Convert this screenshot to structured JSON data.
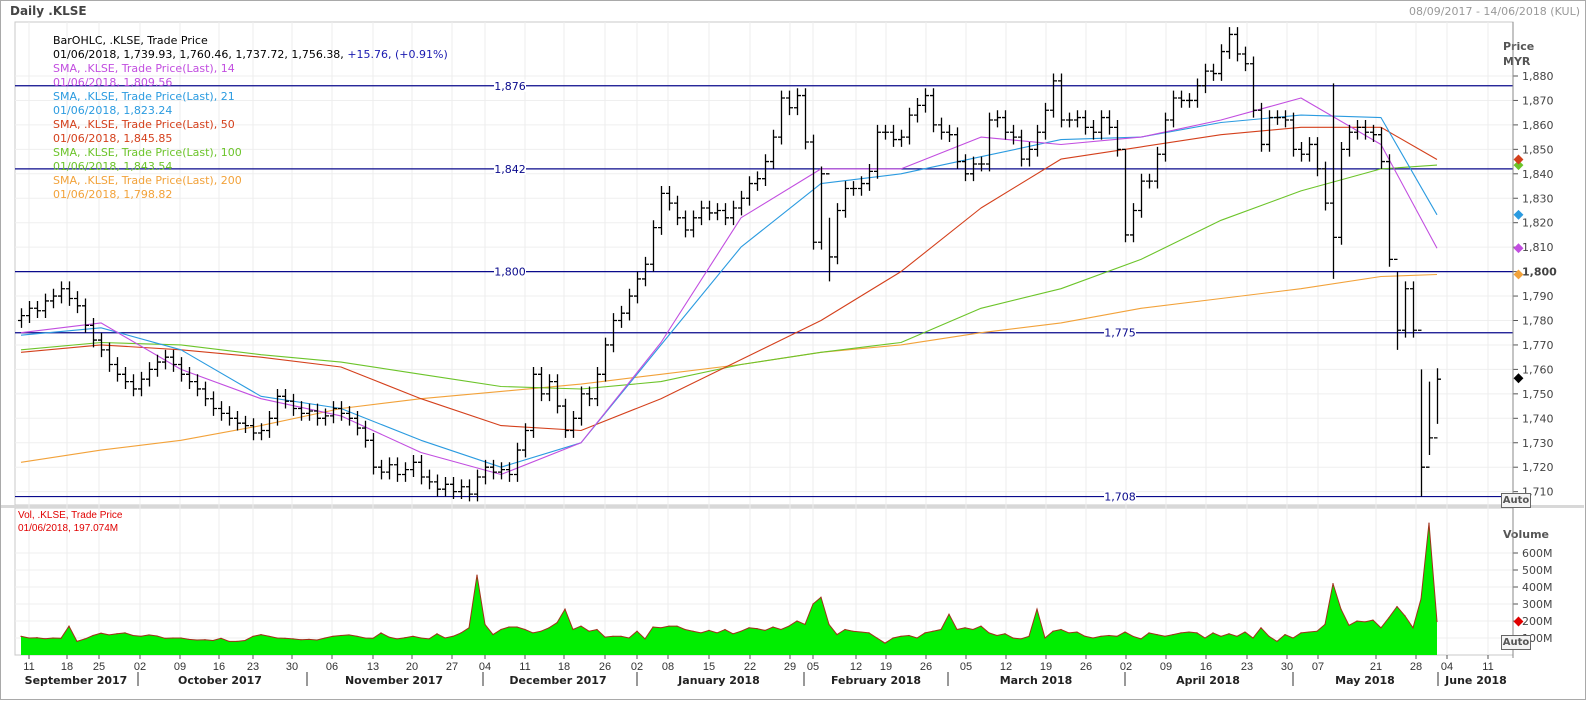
{
  "window": {
    "title": "Daily .KLSE",
    "date_range": "08/09/2017 - 14/06/2018 (KUL)"
  },
  "legend": {
    "ohlc_title": "BarOHLC, .KLSE, Trade Price",
    "ohlc_values": "01/06/2018, 1,739.93, 1,760.46, 1,737.72, 1,756.38,",
    "ohlc_change": "+15.76, (+0.91%)",
    "sma14_title": "SMA, .KLSE, Trade Price(Last),  14",
    "sma14_value": "01/06/2018, 1,809.56",
    "sma21_title": "SMA, .KLSE, Trade Price(Last),  21",
    "sma21_value": "01/06/2018, 1,823.24",
    "sma50_title": "SMA, .KLSE, Trade Price(Last),  50",
    "sma50_value": "01/06/2018, 1,845.85",
    "sma100_title": "SMA, .KLSE, Trade Price(Last),  100",
    "sma100_value": "01/06/2018, 1,843.54",
    "sma200_title": "SMA, .KLSE, Trade Price(Last),  200",
    "sma200_value": "01/06/2018, 1,798.82",
    "vol_title": "Vol, .KLSE, Trade Price",
    "vol_value": "01/06/2018, 197.074M"
  },
  "colors": {
    "sma14": "#c24ee0",
    "sma21": "#2b9be0",
    "sma50": "#d4401c",
    "sma100": "#6cc42a",
    "sma200": "#f2a23a",
    "hline": "#0a0a8c",
    "volume_fill": "#00ee00",
    "volume_line": "#a0301a",
    "bars": "#000000",
    "change": "#1a1ab0"
  },
  "chart_data": [
    {
      "type": "ohlc",
      "yaxis_title": "Price",
      "yaxis_unit": "MYR",
      "ylim": [
        1705,
        1900
      ],
      "yticks": [
        "1,880",
        "1,870",
        "1,860",
        "1,850",
        "1,840",
        "1,830",
        "1,820",
        "1,810",
        "1,800",
        "1,790",
        "1,780",
        "1,770",
        "1,760",
        "1,750",
        "1,740",
        "1,730",
        "1,720",
        "1,710"
      ],
      "ytick_values": [
        1880,
        1870,
        1860,
        1850,
        1840,
        1830,
        1820,
        1810,
        1800,
        1790,
        1780,
        1770,
        1760,
        1750,
        1740,
        1730,
        1720,
        1710
      ],
      "scale_button": "Auto",
      "grid": true,
      "closes": [
        1782,
        1785,
        1784,
        1788,
        1790,
        1793,
        1789,
        1786,
        1778,
        1772,
        1768,
        1762,
        1758,
        1755,
        1752,
        1756,
        1760,
        1763,
        1765,
        1762,
        1758,
        1755,
        1752,
        1748,
        1744,
        1742,
        1740,
        1738,
        1737,
        1734,
        1735,
        1740,
        1749,
        1747,
        1744,
        1742,
        1743,
        1740,
        1741,
        1744,
        1742,
        1740,
        1736,
        1731,
        1720,
        1718,
        1721,
        1717,
        1719,
        1722,
        1716,
        1714,
        1711,
        1713,
        1710,
        1712,
        1709,
        1716,
        1720,
        1718,
        1719,
        1717,
        1727,
        1735,
        1758,
        1750,
        1755,
        1745,
        1735,
        1740,
        1750,
        1748,
        1758,
        1770,
        1780,
        1783,
        1790,
        1797,
        1803,
        1818,
        1832,
        1828,
        1822,
        1817,
        1822,
        1826,
        1824,
        1825,
        1822,
        1826,
        1830,
        1836,
        1838,
        1845,
        1855,
        1871,
        1867,
        1872,
        1853,
        1812,
        1840,
        1806,
        1825,
        1834,
        1834,
        1836,
        1841,
        1857,
        1857,
        1854,
        1855,
        1864,
        1868,
        1872,
        1860,
        1857,
        1856,
        1845,
        1840,
        1844,
        1844,
        1862,
        1863,
        1857,
        1855,
        1846,
        1850,
        1857,
        1866,
        1878,
        1862,
        1862,
        1863,
        1859,
        1857,
        1863,
        1859,
        1850,
        1815,
        1825,
        1837,
        1837,
        1848,
        1862,
        1871,
        1870,
        1870,
        1876,
        1882,
        1881,
        1890,
        1897,
        1889,
        1885,
        1866,
        1852,
        1863,
        1863,
        1862,
        1850,
        1848,
        1852,
        1842,
        1828,
        1814,
        1850,
        1857,
        1859,
        1857,
        1856,
        1845,
        1805,
        1776,
        1793,
        1776,
        1720,
        1732,
        1756
      ],
      "range_overrides": {
        "101": [
          1822,
          1796
        ],
        "138": [
          1850,
          1812
        ],
        "164": [
          1877,
          1797
        ],
        "172": [
          1800,
          1768
        ],
        "175": [
          1760,
          1708
        ],
        "176": [
          1755,
          1725
        ],
        "177": [
          1760.46,
          1737.72
        ]
      },
      "price_lines": [
        {
          "value": 1876,
          "label": "1,876"
        },
        {
          "value": 1842,
          "label": "1,842"
        },
        {
          "value": 1800,
          "label": "1,800"
        },
        {
          "value": 1775,
          "label": "1,775"
        },
        {
          "value": 1708,
          "label": "1,708"
        }
      ],
      "sma": {
        "sma14": [
          1775,
          1779,
          1760,
          1748,
          1741,
          1726,
          1717,
          1730,
          1771,
          1822,
          1842,
          1842,
          1855,
          1852,
          1855,
          1862,
          1871,
          1852,
          1809.56
        ],
        "sma21": [
          1774,
          1777,
          1768,
          1749,
          1744,
          1731,
          1720,
          1730,
          1770,
          1810,
          1836,
          1840,
          1847,
          1854,
          1855,
          1861,
          1864,
          1863,
          1823.24
        ],
        "sma50": [
          1767,
          1770,
          1768,
          1765,
          1761,
          1748,
          1737,
          1735,
          1748,
          1764,
          1780,
          1800,
          1826,
          1846,
          1851,
          1856,
          1859,
          1859,
          1845.85
        ],
        "sma100": [
          1768,
          1771,
          1770,
          1766,
          1763,
          1758,
          1753,
          1752,
          1755,
          1762,
          1767,
          1771,
          1785,
          1793,
          1805,
          1821,
          1833,
          1842,
          1843.54
        ],
        "sma200": [
          1722,
          1727,
          1731,
          1737,
          1744,
          1748,
          1751,
          1754,
          1758,
          1762,
          1767,
          1770,
          1775,
          1779,
          1785,
          1789,
          1793,
          1798,
          1798.82
        ]
      },
      "last_close": 1756.38
    },
    {
      "type": "area",
      "yaxis_title": "Volume",
      "yticks": [
        "600M",
        "500M",
        "400M",
        "300M",
        "200M",
        "100M"
      ],
      "ytick_values": [
        600,
        500,
        400,
        300,
        200,
        100
      ],
      "scale_button": "Auto",
      "values_millions": [
        110,
        100,
        102,
        96,
        100,
        98,
        170,
        80,
        95,
        115,
        128,
        118,
        125,
        130,
        115,
        110,
        118,
        112,
        98,
        100,
        100,
        92,
        88,
        90,
        85,
        98,
        80,
        80,
        85,
        110,
        120,
        110,
        100,
        98,
        95,
        90,
        92,
        88,
        100,
        110,
        115,
        118,
        110,
        100,
        98,
        130,
        105,
        95,
        102,
        110,
        100,
        95,
        125,
        100,
        110,
        130,
        160,
        470,
        180,
        120,
        150,
        165,
        165,
        150,
        130,
        140,
        160,
        190,
        270,
        150,
        170,
        140,
        150,
        105,
        110,
        110,
        100,
        140,
        95,
        165,
        160,
        170,
        170,
        150,
        140,
        130,
        145,
        130,
        150,
        125,
        140,
        160,
        155,
        145,
        165,
        150,
        170,
        200,
        180,
        300,
        340,
        180,
        120,
        150,
        140,
        135,
        130,
        100,
        70,
        100,
        110,
        115,
        100,
        130,
        140,
        150,
        240,
        150,
        160,
        150,
        170,
        130,
        115,
        125,
        100,
        95,
        110,
        270,
        100,
        140,
        150,
        130,
        135,
        110,
        100,
        110,
        115,
        110,
        135,
        110,
        95,
        130,
        120,
        110,
        120,
        130,
        135,
        130,
        100,
        130,
        110,
        125,
        110,
        135,
        100,
        160,
        110,
        80,
        120,
        100,
        130,
        135,
        140,
        180,
        420,
        270,
        175,
        200,
        195,
        205,
        160,
        220,
        285,
        230,
        160,
        330,
        776,
        197.074
      ]
    }
  ],
  "xaxis": {
    "days": [
      "11",
      "18",
      "25",
      "02",
      "09",
      "16",
      "23",
      "30",
      "06",
      "13",
      "20",
      "27",
      "04",
      "11",
      "18",
      "26",
      "02",
      "08",
      "15",
      "22",
      "29",
      "05",
      "12",
      "19",
      "26",
      "05",
      "12",
      "19",
      "26",
      "02",
      "09",
      "16",
      "23",
      "30",
      "07",
      "21",
      "28",
      "04",
      "11"
    ],
    "months": [
      "September 2017",
      "October 2017",
      "November 2017",
      "December 2017",
      "January 2018",
      "February 2018",
      "March 2018",
      "April 2018",
      "May 2018",
      "June 2018"
    ]
  }
}
